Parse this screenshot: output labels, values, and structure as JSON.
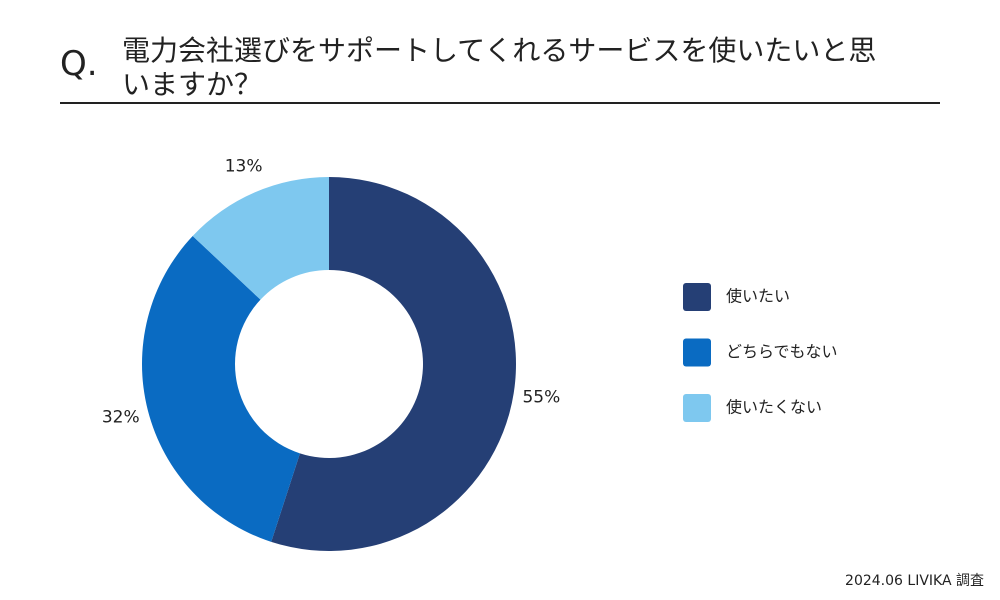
{
  "chart_data": {
    "type": "donut",
    "title_prefix": "Q.",
    "title": "電力会社選びをサポートしてくれるサービスを使いたいと思いますか？",
    "categories": [
      "使いたい",
      "どちらでもない",
      "使いたくない"
    ],
    "values": [
      55,
      32,
      13
    ],
    "value_labels": [
      "55%",
      "32%",
      "13%"
    ],
    "colors": [
      "#253f75",
      "#0a6bc2",
      "#7ec8ef"
    ],
    "legend": "right",
    "source": "2024.06 LIVIKA 調査"
  }
}
